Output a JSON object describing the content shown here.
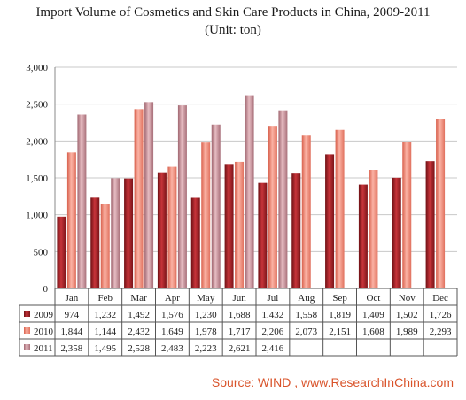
{
  "title_line1": "Import Volume of Cosmetics and Skin Care Products in China, 2009-2011",
  "title_line2": "(Unit: ton)",
  "source_label": "Source",
  "source_rest": ": WIND , www.ResearchInChina.com",
  "chart_data": {
    "type": "bar",
    "title": "Import Volume of Cosmetics and Skin Care Products in China, 2009-2011",
    "subtitle": "(Unit: ton)",
    "categories": [
      "Jan",
      "Feb",
      "Mar",
      "Apr",
      "May",
      "Jun",
      "Jul",
      "Aug",
      "Sep",
      "Oct",
      "Nov",
      "Dec"
    ],
    "series": [
      {
        "name": "2009",
        "values": [
          974,
          1232,
          1492,
          1576,
          1230,
          1688,
          1432,
          1558,
          1819,
          1409,
          1502,
          1726
        ],
        "color": "#a8232a"
      },
      {
        "name": "2010",
        "values": [
          1844,
          1144,
          2432,
          1649,
          1978,
          1717,
          2206,
          2073,
          2151,
          1608,
          1989,
          2293
        ],
        "color": "#f08a78"
      },
      {
        "name": "2011",
        "values": [
          2358,
          1495,
          2528,
          2483,
          2223,
          2621,
          2416,
          null,
          null,
          null,
          null,
          null
        ],
        "color": "#c98d95"
      }
    ],
    "ylim": [
      0,
      3000
    ],
    "yticks": [
      0,
      500,
      1000,
      1500,
      2000,
      2500,
      3000
    ],
    "ytick_labels": [
      "0",
      "500",
      "1,000",
      "1,500",
      "2,000",
      "2,500",
      "3,000"
    ],
    "table_labels": [
      [
        "974",
        "1,232",
        "1,492",
        "1,576",
        "1,230",
        "1,688",
        "1,432",
        "1,558",
        "1,819",
        "1,409",
        "1,502",
        "1,726"
      ],
      [
        "1,844",
        "1,144",
        "2,432",
        "1,649",
        "1,978",
        "1,717",
        "2,206",
        "2,073",
        "2,151",
        "1,608",
        "1,989",
        "2,293"
      ],
      [
        "2,358",
        "1,495",
        "2,528",
        "2,483",
        "2,223",
        "2,621",
        "2,416",
        "",
        "",
        "",
        "",
        ""
      ]
    ],
    "grid": true,
    "legend": "data-table"
  }
}
